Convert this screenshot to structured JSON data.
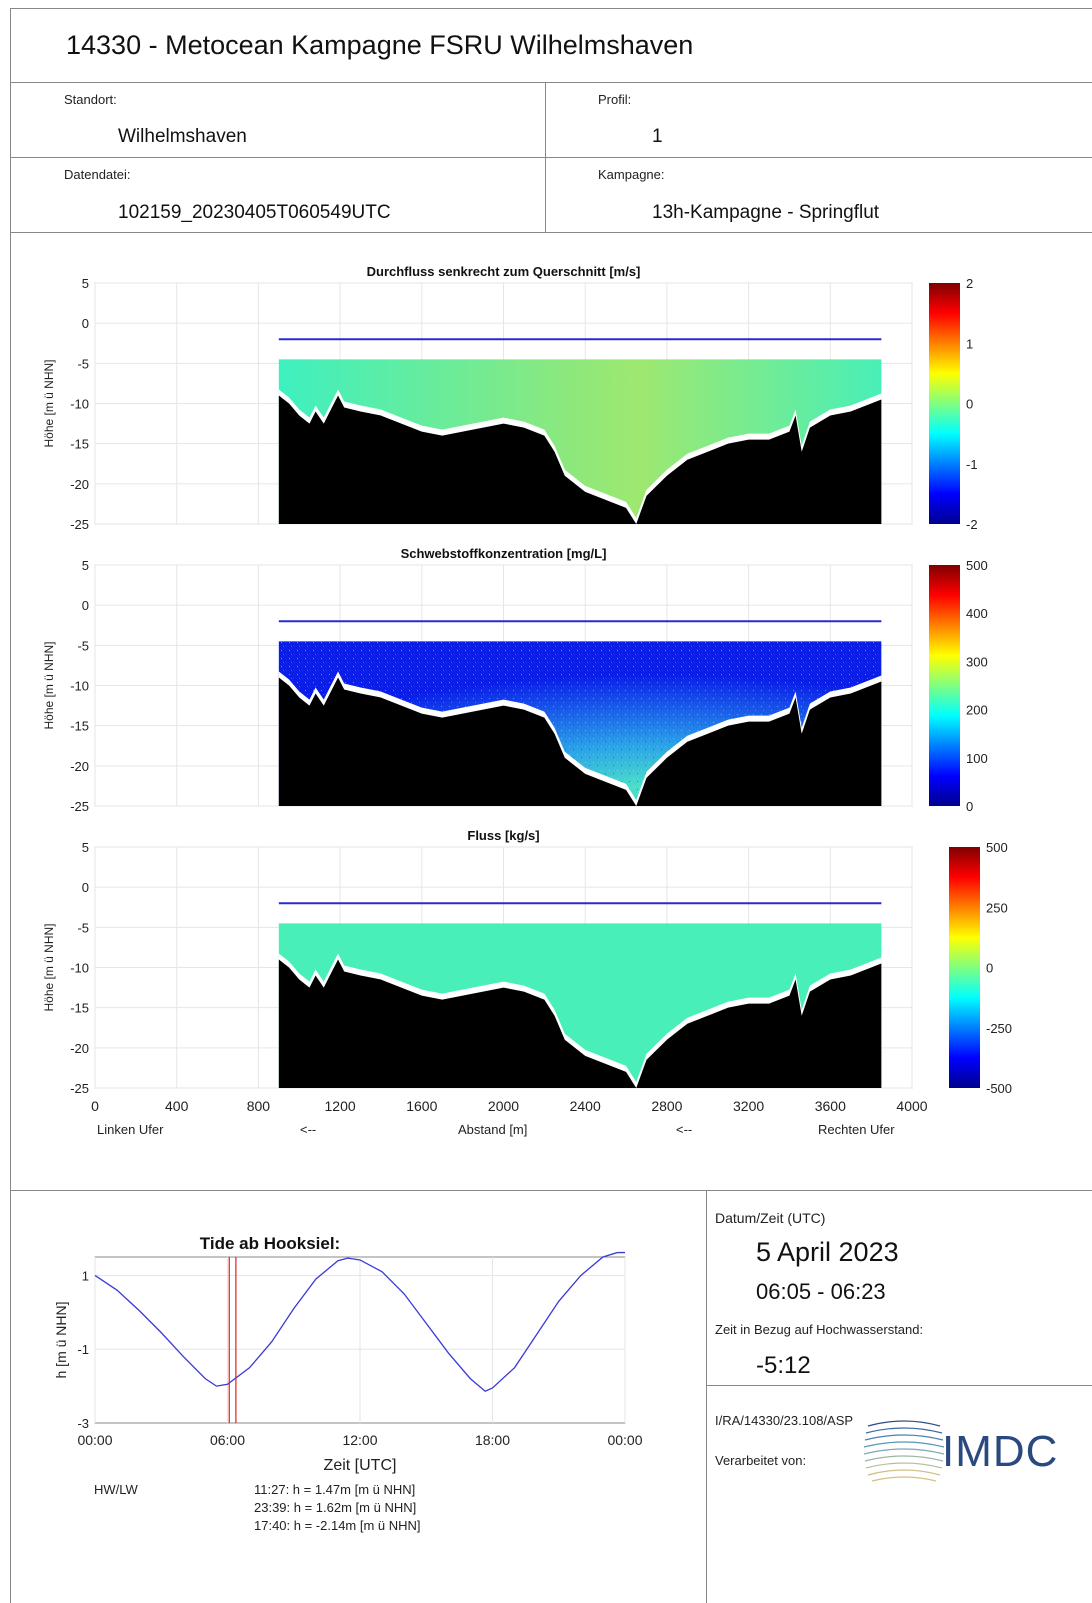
{
  "header": {
    "title": "14330 - Metocean Kampagne FSRU Wilhelmshaven",
    "standort_label": "Standort:",
    "standort_value": "Wilhelmshaven",
    "profil_label": "Profil:",
    "profil_value": "1",
    "datendatei_label": "Datendatei:",
    "datendatei_value": "102159_20230405T060549UTC",
    "kampagne_label": "Kampagne:",
    "kampagne_value": "13h-Kampagne - Springflut"
  },
  "section_plots": {
    "ylabel": "Höhe [m ü NHN]",
    "xlabel": "Abstand [m]",
    "left_bank": "Linken Ufer",
    "right_bank": "Rechten Ufer",
    "arrow_left": "<--",
    "arrow_right": "<--",
    "x_ticks": [
      "0",
      "400",
      "800",
      "1200",
      "1600",
      "2000",
      "2400",
      "2800",
      "3200",
      "3600",
      "4000"
    ],
    "y_ticks": [
      "5",
      "0",
      "-5",
      "-10",
      "-15",
      "-20",
      "-25"
    ]
  },
  "chart_data": [
    {
      "type": "heatmap",
      "title": "Durchfluss senkrecht zum Querschnitt [m/s]",
      "ylabel": "Höhe [m ü NHN]",
      "xlim": [
        0,
        4000
      ],
      "ylim": [
        -25,
        5
      ],
      "colorbar_ticks": [
        "2",
        "1",
        "0",
        "-1",
        "-2"
      ],
      "clim": [
        -2,
        2
      ],
      "water_surface_level": -2,
      "measurement_top": -4.5,
      "grid": true
    },
    {
      "type": "heatmap",
      "title": "Schwebstoffkonzentration [mg/L]",
      "ylabel": "Höhe [m ü NHN]",
      "xlim": [
        0,
        4000
      ],
      "ylim": [
        -25,
        5
      ],
      "colorbar_ticks": [
        "500",
        "400",
        "300",
        "200",
        "100",
        "0"
      ],
      "clim": [
        0,
        500
      ],
      "water_surface_level": -2,
      "measurement_top": -4.5,
      "grid": true
    },
    {
      "type": "heatmap",
      "title": "Fluss [kg/s]",
      "ylabel": "Höhe [m ü NHN]",
      "xlim": [
        0,
        4000
      ],
      "ylim": [
        -25,
        5
      ],
      "colorbar_ticks": [
        "500",
        "250",
        "0",
        "-250",
        "-500"
      ],
      "clim": [
        -500,
        500
      ],
      "water_surface_level": -2,
      "measurement_top": -4.5,
      "grid": true
    },
    {
      "type": "line",
      "title": "Tide ab Hooksiel:",
      "xlabel": "Zeit [UTC]",
      "ylabel": "h [m ü NHN]",
      "x_ticks": [
        "00:00",
        "06:00",
        "12:00",
        "18:00",
        "00:00"
      ],
      "y_ticks": [
        "1",
        "-1",
        "-3"
      ],
      "ylim": [
        -3,
        1.5
      ],
      "series": [
        {
          "x_hours": [
            0,
            1,
            2,
            3,
            4,
            5,
            5.5,
            6,
            7,
            8,
            9,
            10,
            11,
            11.45,
            12,
            13,
            14,
            15,
            16,
            17,
            17.67,
            18,
            19,
            20,
            21,
            22,
            23,
            23.65,
            24
          ],
          "values": [
            1.0,
            0.6,
            0.05,
            -0.55,
            -1.2,
            -1.8,
            -2.0,
            -1.95,
            -1.5,
            -0.8,
            0.1,
            0.9,
            1.4,
            1.47,
            1.42,
            1.1,
            0.5,
            -0.3,
            -1.1,
            -1.8,
            -2.14,
            -2.05,
            -1.5,
            -0.6,
            0.3,
            1.0,
            1.5,
            1.62,
            1.62
          ]
        }
      ],
      "markers": [
        6.08,
        6.38
      ]
    }
  ],
  "datum": {
    "label": "Datum/Zeit (UTC)",
    "date": "5 April 2023",
    "time": "06:05 - 06:23",
    "hw_label": "Zeit in Bezug auf Hochwasserstand:",
    "hw_value": "-5:12",
    "report_ref": "I/RA/14330/23.108/ASP",
    "processed_by": "Verarbeitet von:",
    "logo_text": "IMDC"
  },
  "hwlw": {
    "label": "HW/LW",
    "rows": [
      "11:27: h = 1.47m [m ü NHN]",
      "23:39: h = 1.62m [m ü NHN]",
      "17:40: h = -2.14m [m ü NHN]"
    ]
  }
}
